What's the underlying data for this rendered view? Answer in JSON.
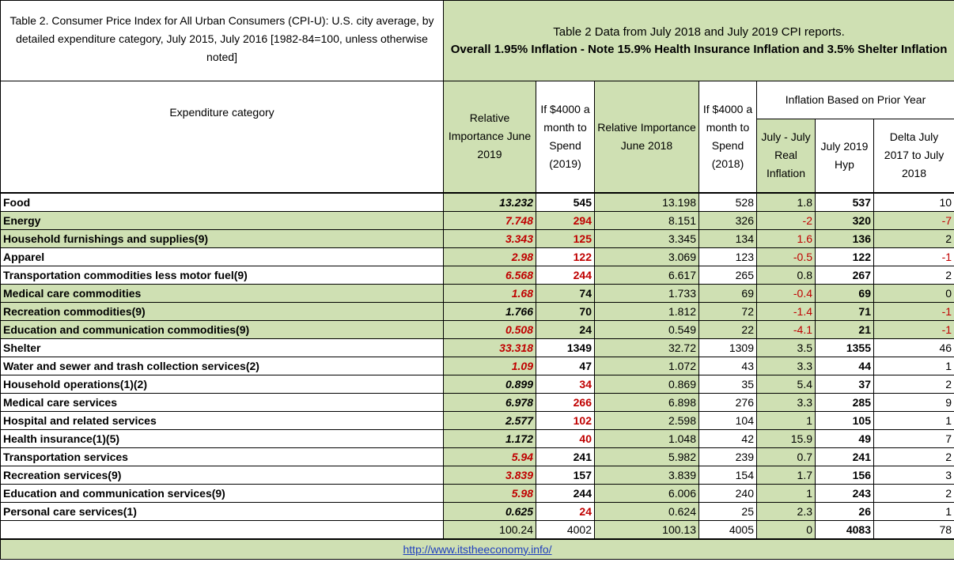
{
  "header": {
    "title_left": "Table 2. Consumer Price Index for All Urban Consumers (CPI-U): U.S. city average, by detailed expenditure category, July 2015, July 2016 [1982-84=100, unless otherwise noted]",
    "title_right_1": "Table 2 Data from July 2018 and July 2019 CPI reports.",
    "title_right_2": "Overall 1.95% Inflation - Note 15.9% Health Insurance Inflation and 3.5% Shelter Inflation",
    "col_category": "Expenditure category",
    "col_rel2019": "Relative Importance June 2019",
    "col_spend2019": "If $4000 a month to Spend (2019)",
    "col_rel2018": "Relative Importance June 2018",
    "col_spend2018": "If $4000 a month to Spend (2018)",
    "group_inflation": "Inflation Based on Prior Year",
    "col_real": "July - July Real Inflation",
    "col_hyp": "July 2019 Hyp",
    "col_delta": "Delta July 2017 to July 2018"
  },
  "rows": [
    {
      "cat": "Food",
      "rel2019": "13.232",
      "spend2019": "545",
      "rel2018": "13.198",
      "spend2018": "528",
      "real": "1.8",
      "hyp": "537",
      "delta": "10",
      "shade": false
    },
    {
      "cat": "Energy",
      "rel2019": "7.748",
      "spend2019": "294",
      "rel2018": "8.151",
      "spend2018": "326",
      "real": "-2",
      "hyp": "320",
      "delta": "-7",
      "shade": true
    },
    {
      "cat": "Household furnishings and supplies(9)",
      "rel2019": "3.343",
      "spend2019": "125",
      "rel2018": "3.345",
      "spend2018": "134",
      "real": "1.6",
      "hyp": "136",
      "delta": "2",
      "shade": true
    },
    {
      "cat": "Apparel",
      "rel2019": "2.98",
      "spend2019": "122",
      "rel2018": "3.069",
      "spend2018": "123",
      "real": "-0.5",
      "hyp": "122",
      "delta": "-1",
      "shade": false
    },
    {
      "cat": "Transportation commodities less motor fuel(9)",
      "rel2019": "6.568",
      "spend2019": "244",
      "rel2018": "6.617",
      "spend2018": "265",
      "real": "0.8",
      "hyp": "267",
      "delta": "2",
      "shade": false
    },
    {
      "cat": "Medical care commodities",
      "rel2019": "1.68",
      "spend2019": "74",
      "rel2018": "1.733",
      "spend2018": "69",
      "real": "-0.4",
      "hyp": "69",
      "delta": "0",
      "shade": true
    },
    {
      "cat": "Recreation commodities(9)",
      "rel2019": "1.766",
      "spend2019": "70",
      "rel2018": "1.812",
      "spend2018": "72",
      "real": "-1.4",
      "hyp": "71",
      "delta": "-1",
      "shade": true
    },
    {
      "cat": "Education and communication commodities(9)",
      "rel2019": "0.508",
      "spend2019": "24",
      "rel2018": "0.549",
      "spend2018": "22",
      "real": "-4.1",
      "hyp": "21",
      "delta": "-1",
      "shade": true
    },
    {
      "cat": "Shelter",
      "rel2019": "33.318",
      "spend2019": "1349",
      "rel2018": "32.72",
      "spend2018": "1309",
      "real": "3.5",
      "hyp": "1355",
      "delta": "46",
      "shade": false
    },
    {
      "cat": "Water and sewer and trash collection services(2)",
      "rel2019": "1.09",
      "spend2019": "47",
      "rel2018": "1.072",
      "spend2018": "43",
      "real": "3.3",
      "hyp": "44",
      "delta": "1",
      "shade": false
    },
    {
      "cat": "Household operations(1)(2)",
      "rel2019": "0.899",
      "spend2019": "34",
      "rel2018": "0.869",
      "spend2018": "35",
      "real": "5.4",
      "hyp": "37",
      "delta": "2",
      "shade": false
    },
    {
      "cat": "Medical care services",
      "rel2019": "6.978",
      "spend2019": "266",
      "rel2018": "6.898",
      "spend2018": "276",
      "real": "3.3",
      "hyp": "285",
      "delta": "9",
      "shade": false
    },
    {
      "cat": "Hospital and related services",
      "rel2019": "2.577",
      "spend2019": "102",
      "rel2018": "2.598",
      "spend2018": "104",
      "real": "1",
      "hyp": "105",
      "delta": "1",
      "shade": false
    },
    {
      "cat": "Health insurance(1)(5)",
      "rel2019": "1.172",
      "spend2019": "40",
      "rel2018": "1.048",
      "spend2018": "42",
      "real": "15.9",
      "hyp": "49",
      "delta": "7",
      "shade": false
    },
    {
      "cat": "Transportation services",
      "rel2019": "5.94",
      "spend2019": "241",
      "rel2018": "5.982",
      "spend2018": "239",
      "real": "0.7",
      "hyp": "241",
      "delta": "2",
      "shade": false
    },
    {
      "cat": "Recreation services(9)",
      "rel2019": "3.839",
      "spend2019": "157",
      "rel2018": "3.839",
      "spend2018": "154",
      "real": "1.7",
      "hyp": "156",
      "delta": "3",
      "shade": false
    },
    {
      "cat": "Education and communication services(9)",
      "rel2019": "5.98",
      "spend2019": "244",
      "rel2018": "6.006",
      "spend2018": "240",
      "real": "1",
      "hyp": "243",
      "delta": "2",
      "shade": false
    },
    {
      "cat": "Personal care services(1)",
      "rel2019": "0.625",
      "spend2019": "24",
      "rel2018": "0.624",
      "spend2018": "25",
      "real": "2.3",
      "hyp": "26",
      "delta": "1",
      "shade": false
    }
  ],
  "totals": {
    "rel2019": "100.24",
    "spend2019": "4002",
    "rel2018": "100.13",
    "spend2018": "4005",
    "real": "0",
    "hyp": "4083",
    "delta": "78"
  },
  "footer": {
    "link": "http://www.itstheeconomy.info/"
  },
  "colors": {
    "green": "#cfe0b3",
    "red": "#c00000",
    "link": "#1f3fbf"
  }
}
